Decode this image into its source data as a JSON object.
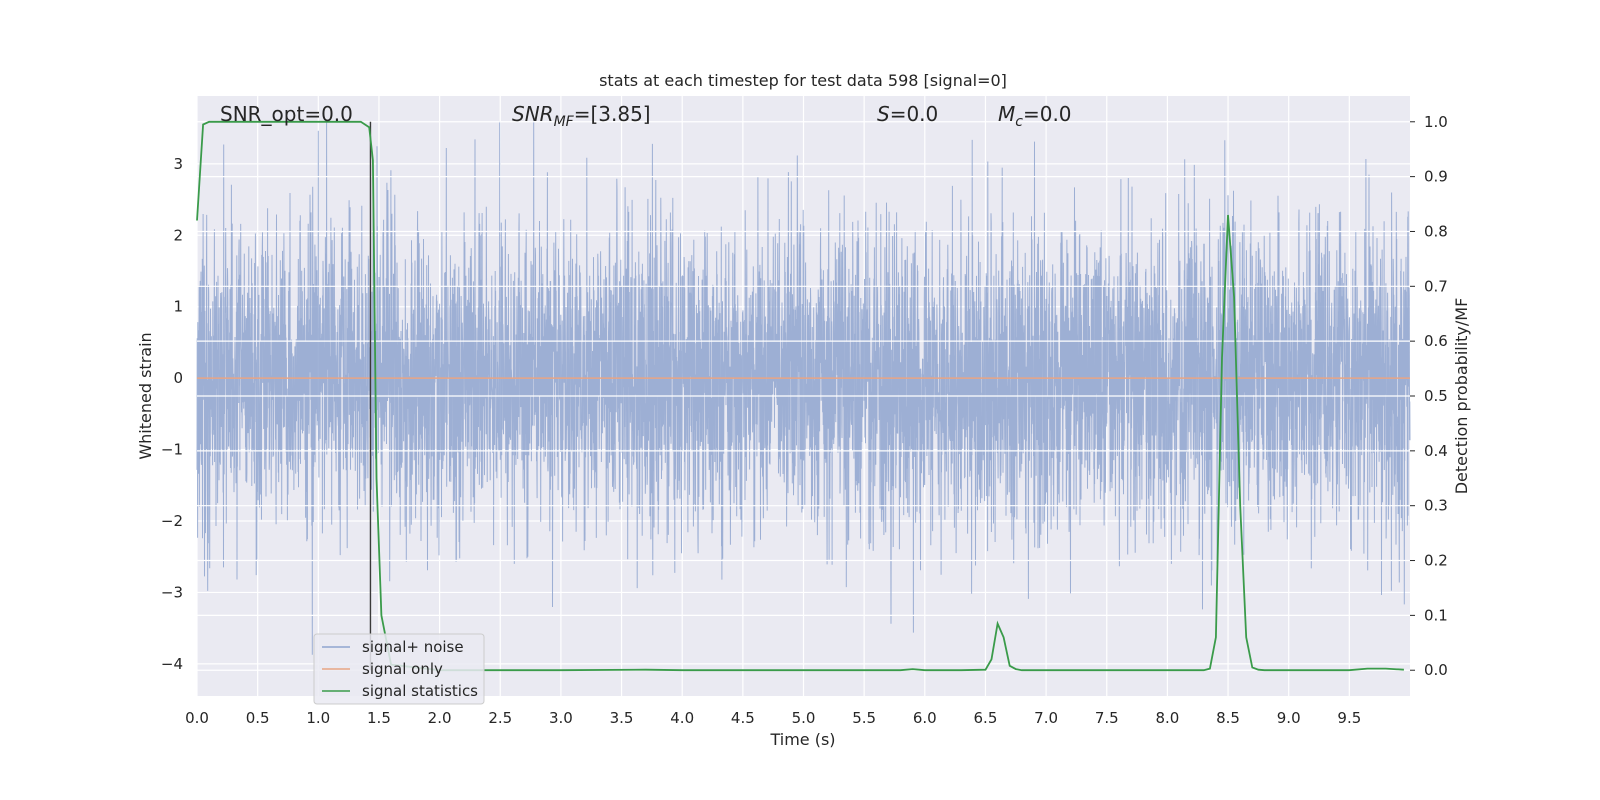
{
  "chart_data": {
    "type": "line",
    "title": "stats at each timestep for test data 598 [signal=0]",
    "xlabel": "Time (s)",
    "ylabel_left": "Whitened strain",
    "ylabel_right": "Detection probability/MF",
    "xlim": [
      0.0,
      10.0
    ],
    "ylim_left": [
      -4.45,
      3.95
    ],
    "ylim_right": [
      -0.047,
      1.047
    ],
    "x_ticks": [
      "0.0",
      "0.5",
      "1.0",
      "1.5",
      "2.0",
      "2.5",
      "3.0",
      "3.5",
      "4.0",
      "4.5",
      "5.0",
      "5.5",
      "6.0",
      "6.5",
      "7.0",
      "7.5",
      "8.0",
      "8.5",
      "9.0",
      "9.5"
    ],
    "y_left_ticks": [
      "3",
      "2",
      "1",
      "0",
      "−1",
      "−2",
      "−3",
      "−4"
    ],
    "y_right_ticks": [
      "1.0",
      "0.9",
      "0.8",
      "0.7",
      "0.6",
      "0.5",
      "0.4",
      "0.3",
      "0.2",
      "0.1",
      "0.0"
    ],
    "grid": true,
    "legend_placement": "lower-left",
    "annotations": {
      "snr_opt": "SNR_opt=0.0",
      "snr_mf_sym": "SNR",
      "snr_mf_sub": "MF",
      "snr_mf_val": "=[3.85]",
      "s_sym": "S",
      "s_val": "=0.0",
      "mc_sym": "M",
      "mc_sub": "c",
      "mc_val": "=0.0"
    },
    "vline_time": 1.43,
    "series": [
      {
        "name": "signal+ noise",
        "color": "#8fa4cf",
        "axis": "left",
        "note": "whitened noise, approx. 10000 samples, range about -4.0 to 3.6",
        "envelope_min": -4.0,
        "envelope_max": 3.6
      },
      {
        "name": "signal only",
        "color": "#e8a583",
        "axis": "left",
        "x": [
          0.0,
          10.0
        ],
        "y": [
          0.0,
          0.0
        ]
      },
      {
        "name": "signal statistics",
        "color": "#3a9b4a",
        "axis": "right",
        "x": [
          0.0,
          0.05,
          0.1,
          0.2,
          0.5,
          1.0,
          1.2,
          1.35,
          1.42,
          1.45,
          1.48,
          1.52,
          1.6,
          2.0,
          3.0,
          3.7,
          4.0,
          5.0,
          5.5,
          5.8,
          5.9,
          6.0,
          6.3,
          6.5,
          6.55,
          6.6,
          6.65,
          6.7,
          6.75,
          6.8,
          7.0,
          8.0,
          8.3,
          8.35,
          8.4,
          8.45,
          8.5,
          8.55,
          8.6,
          8.65,
          8.7,
          8.75,
          8.8,
          9.0,
          9.5,
          9.65,
          9.8,
          9.95
        ],
        "y": [
          0.82,
          0.995,
          1.0,
          1.0,
          1.0,
          1.0,
          1.0,
          1.0,
          0.99,
          0.93,
          0.35,
          0.1,
          0.01,
          0.0,
          0.0,
          0.001,
          0.0,
          0.0,
          0.0,
          0.0,
          0.002,
          0.0,
          0.0,
          0.001,
          0.02,
          0.085,
          0.06,
          0.008,
          0.002,
          0.0,
          0.0,
          0.0,
          0.0,
          0.003,
          0.06,
          0.57,
          0.83,
          0.68,
          0.3,
          0.06,
          0.005,
          0.001,
          0.0,
          0.0,
          0.0,
          0.003,
          0.003,
          0.001
        ]
      }
    ]
  }
}
